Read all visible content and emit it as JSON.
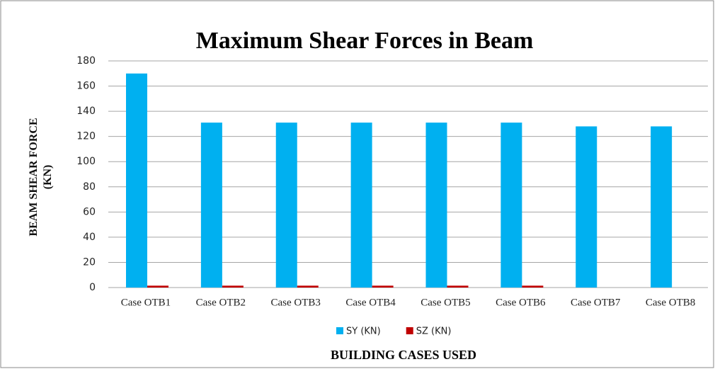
{
  "chart_data": {
    "type": "bar",
    "title": "Maximum Shear Forces in Beam",
    "y_label": "BEAM SHEAR FORCE\n(KN)",
    "x_label": "BUILDING CASES USED",
    "categories": [
      "Case OTB1",
      "Case OTB2",
      "Case OTB3",
      "Case OTB4",
      "Case OTB5",
      "Case OTB6",
      "Case OTB7",
      "Case OTB8"
    ],
    "series": [
      {
        "name": "SY (KN)",
        "color": "#00b0f0",
        "values": [
          170,
          131,
          131,
          131,
          131,
          131,
          128,
          128
        ]
      },
      {
        "name": "SZ (KN)",
        "color": "#c00000",
        "values": [
          1.5,
          1.5,
          1.5,
          1.5,
          1.5,
          1.5,
          0,
          0
        ]
      }
    ],
    "ylim": [
      0,
      180
    ],
    "yticks": [
      0,
      20,
      40,
      60,
      80,
      100,
      120,
      140,
      160,
      180
    ],
    "grid": true,
    "legend": "bottom"
  }
}
